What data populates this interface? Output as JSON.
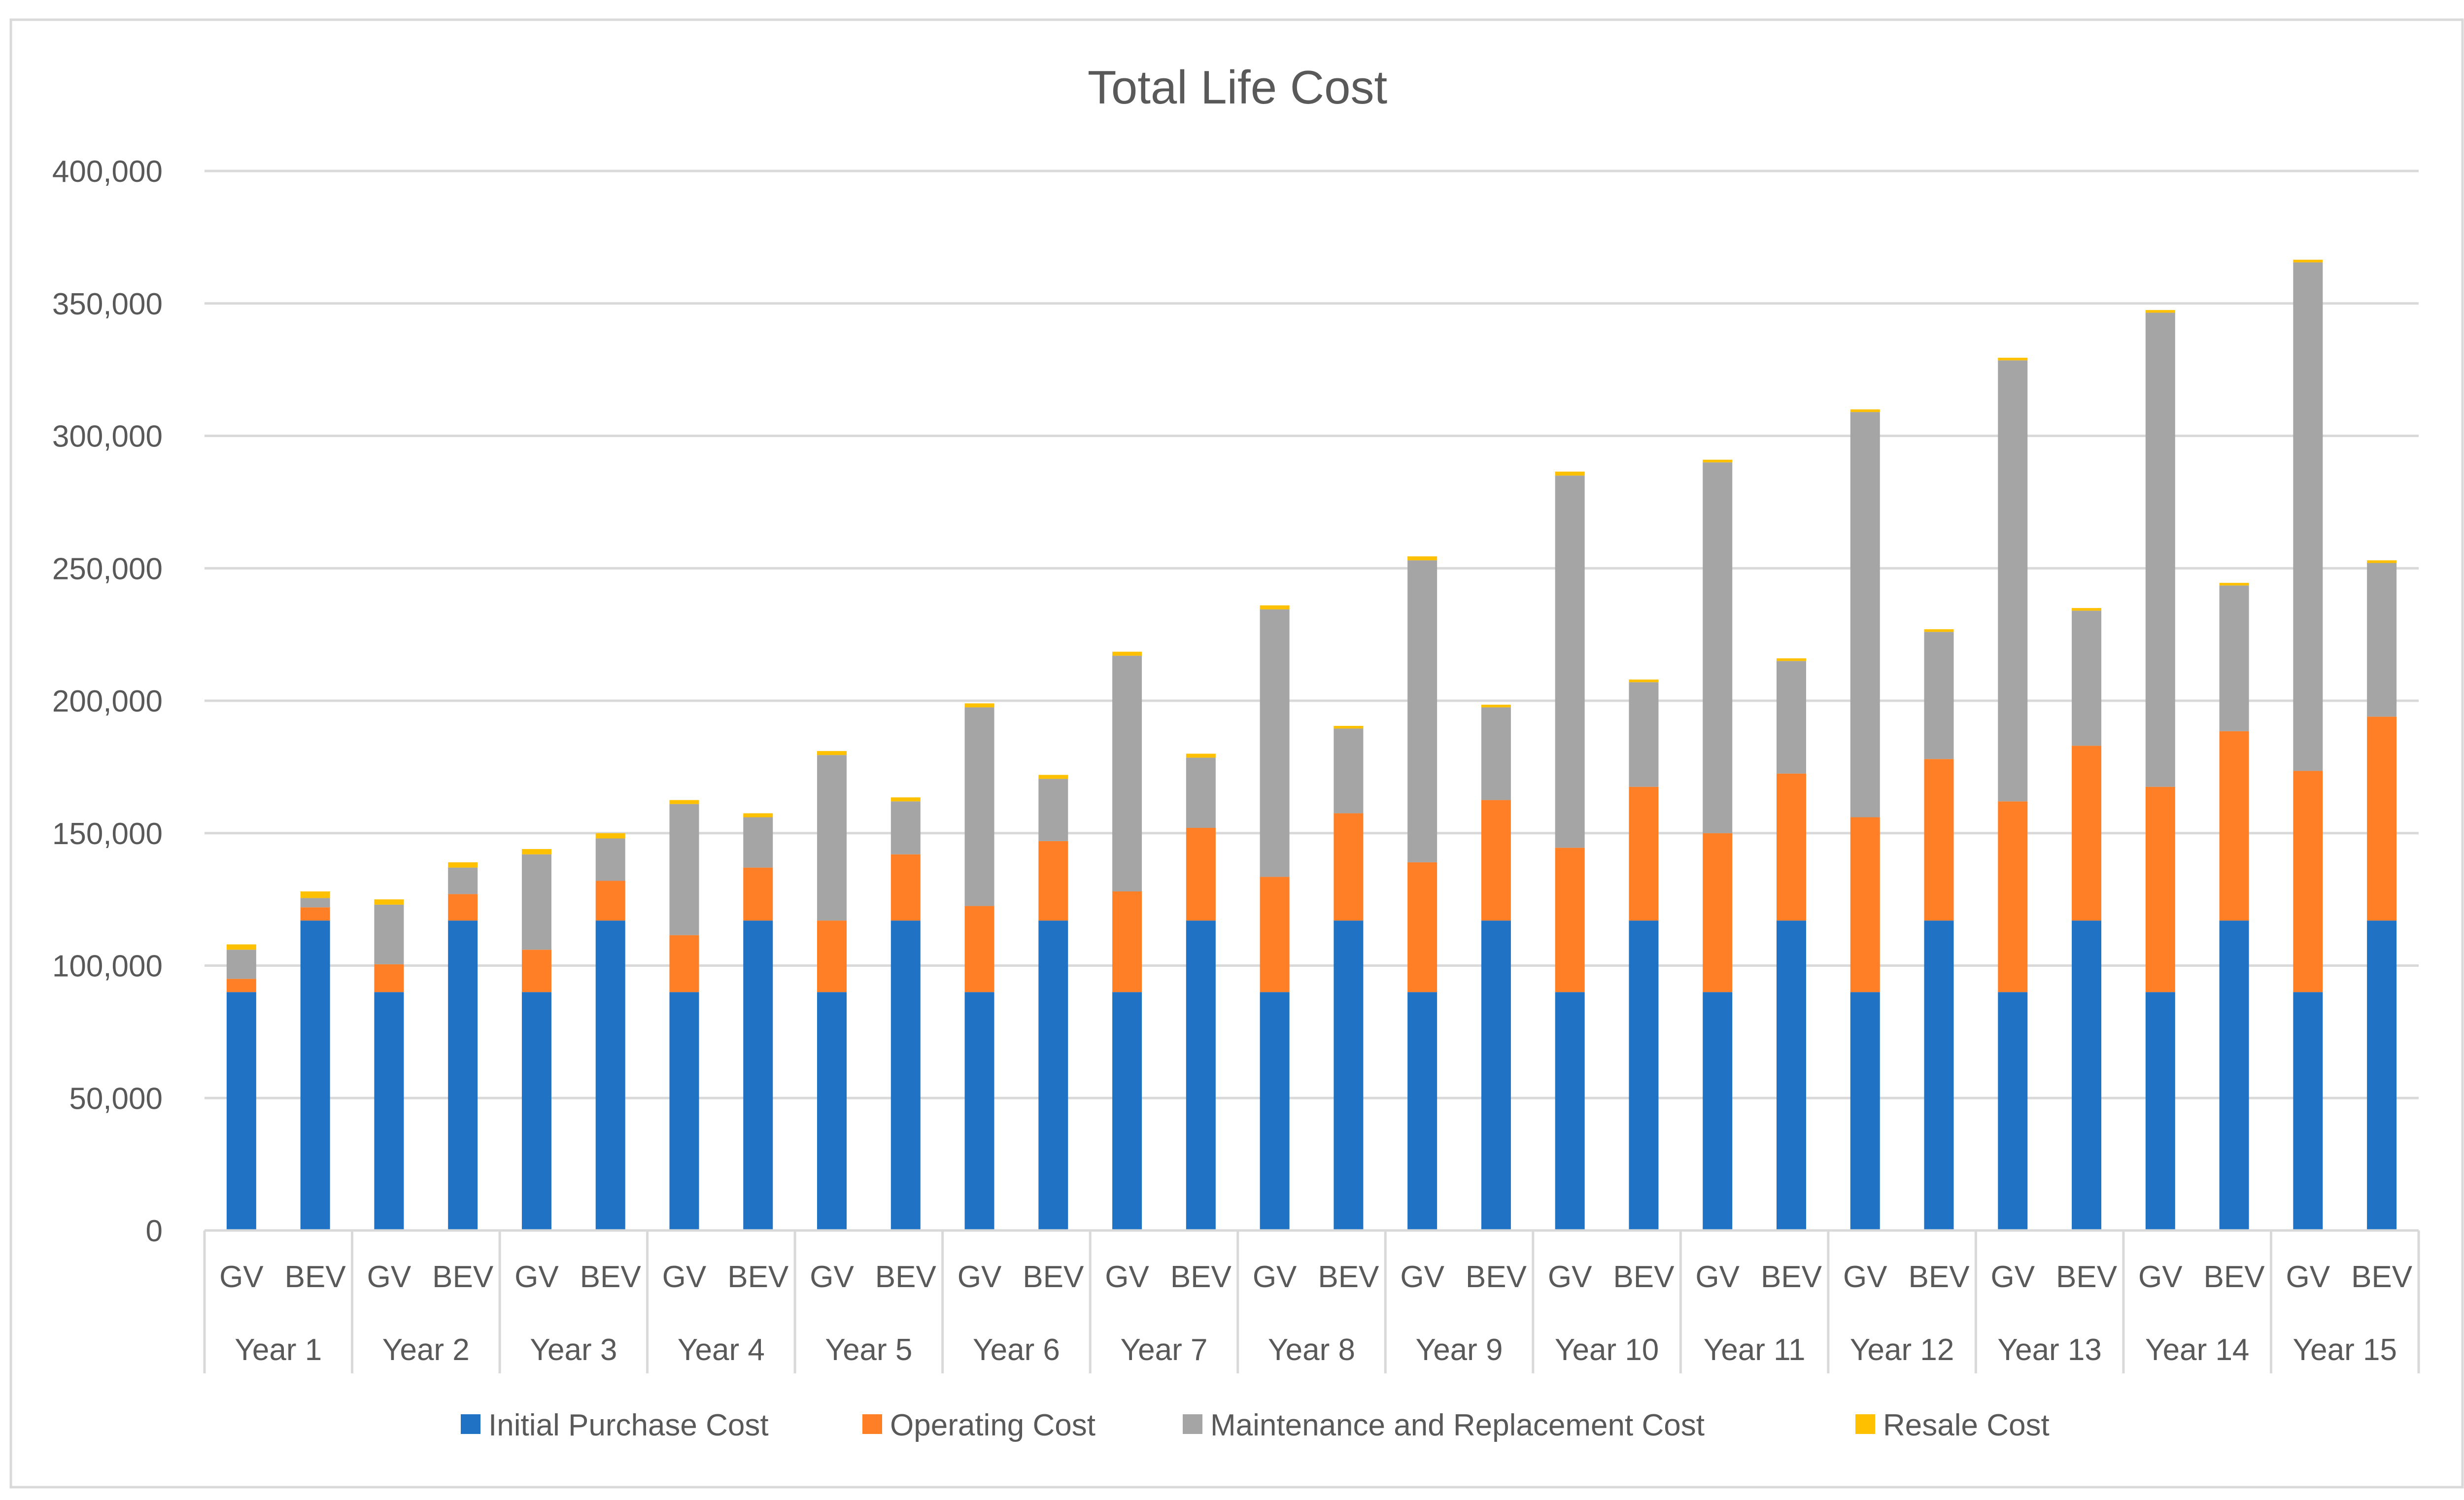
{
  "chart_data": {
    "type": "bar",
    "stacked": true,
    "title": "Total Life Cost",
    "xlabel": "",
    "ylabel": "",
    "ylim": [
      0,
      400000
    ],
    "y_ticks": [
      0,
      50000,
      100000,
      150000,
      200000,
      250000,
      300000,
      350000,
      400000
    ],
    "y_tick_labels": [
      "0",
      "50,000",
      "100,000",
      "150,000",
      "200,000",
      "250,000",
      "300,000",
      "350,000",
      "400,000"
    ],
    "grid": true,
    "legend_position": "bottom",
    "groups": [
      "Year 1",
      "Year 2",
      "Year 3",
      "Year 4",
      "Year 5",
      "Year 6",
      "Year 7",
      "Year 8",
      "Year 9",
      "Year 10",
      "Year 11",
      "Year 12",
      "Year 13",
      "Year 14",
      "Year 15"
    ],
    "subcategories": [
      "GV",
      "BEV"
    ],
    "categories": [
      "Year 1 GV",
      "Year 1 BEV",
      "Year 2 GV",
      "Year 2 BEV",
      "Year 3 GV",
      "Year 3 BEV",
      "Year 4 GV",
      "Year 4 BEV",
      "Year 5 GV",
      "Year 5 BEV",
      "Year 6 GV",
      "Year 6 BEV",
      "Year 7 GV",
      "Year 7 BEV",
      "Year 8 GV",
      "Year 8 BEV",
      "Year 9 GV",
      "Year 9 BEV",
      "Year 10 GV",
      "Year 10 BEV",
      "Year 11 GV",
      "Year 11 BEV",
      "Year 12 GV",
      "Year 12 BEV",
      "Year 13 GV",
      "Year 13 BEV",
      "Year 14 GV",
      "Year 14 BEV",
      "Year 15 GV",
      "Year 15 BEV"
    ],
    "series": [
      {
        "name": "Initial Purchase Cost",
        "color": "#1F72C4",
        "values": [
          90000,
          117000,
          90000,
          117000,
          90000,
          117000,
          90000,
          117000,
          90000,
          117000,
          90000,
          117000,
          90000,
          117000,
          90000,
          117000,
          90000,
          117000,
          90000,
          117000,
          90000,
          117000,
          90000,
          117000,
          90000,
          117000,
          90000,
          117000,
          90000,
          117000
        ]
      },
      {
        "name": "Operating Cost",
        "color": "#FF7F27",
        "values": [
          5000,
          5000,
          10500,
          10000,
          16000,
          15000,
          21500,
          20000,
          27000,
          25000,
          32500,
          30000,
          38000,
          35000,
          43500,
          40500,
          49000,
          45500,
          54500,
          50500,
          60000,
          55500,
          66000,
          61000,
          72000,
          66000,
          77500,
          71500,
          83500,
          77000
        ]
      },
      {
        "name": "Maintenance and Replacement Cost",
        "color": "#A5A5A5",
        "values": [
          11000,
          3500,
          22500,
          10000,
          36000,
          16000,
          49500,
          19000,
          62500,
          20000,
          75000,
          23500,
          89000,
          26500,
          101000,
          32000,
          114000,
          35000,
          140500,
          39500,
          140000,
          42500,
          153000,
          48000,
          166500,
          51000,
          179000,
          55000,
          192000,
          58000
        ]
      },
      {
        "name": "Resale Cost",
        "color": "#FFC000",
        "values": [
          2000,
          2500,
          2000,
          2000,
          2000,
          2000,
          1500,
          1500,
          1500,
          1500,
          1500,
          1500,
          1500,
          1500,
          1500,
          1000,
          1500,
          1000,
          1500,
          1000,
          1000,
          1000,
          1000,
          1000,
          1000,
          1000,
          1000,
          1000,
          1000,
          1000
        ]
      }
    ]
  }
}
